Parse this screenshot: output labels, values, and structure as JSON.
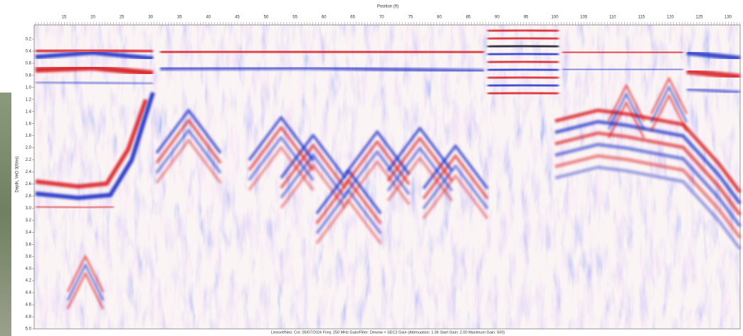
{
  "header": {
    "title": "Position (ft)"
  },
  "x_axis": {
    "labels": [
      "15",
      "20",
      "25",
      "30",
      "35",
      "40",
      "45",
      "50",
      "55",
      "60",
      "65",
      "70",
      "75",
      "80",
      "85",
      "90",
      "95",
      "100",
      "105",
      "110",
      "115",
      "120",
      "125",
      "130"
    ]
  },
  "y_axis": {
    "title": "Depth, VeD 3(ft/ns)",
    "labels": [
      "0.2",
      "0.4",
      "0.6",
      "0.8",
      "1.0",
      "1.2",
      "1.4",
      "1.6",
      "1.8",
      "2.0",
      "2.2",
      "2.4",
      "2.6",
      "2.8",
      "3.0",
      "3.2",
      "3.4",
      "3.6",
      "3.8",
      "4.0",
      "4.2",
      "4.4",
      "4.6",
      "4.8",
      "5.0"
    ]
  },
  "footer": {
    "text": "Lineset/Neo: Col: 05/07/2024 Freq: 250 MHz Gain/Filter: Dewow + SEC2 Gain (Attenuation: 1.06 Start Gain: 2.00 Maximum Gain: 500)"
  }
}
